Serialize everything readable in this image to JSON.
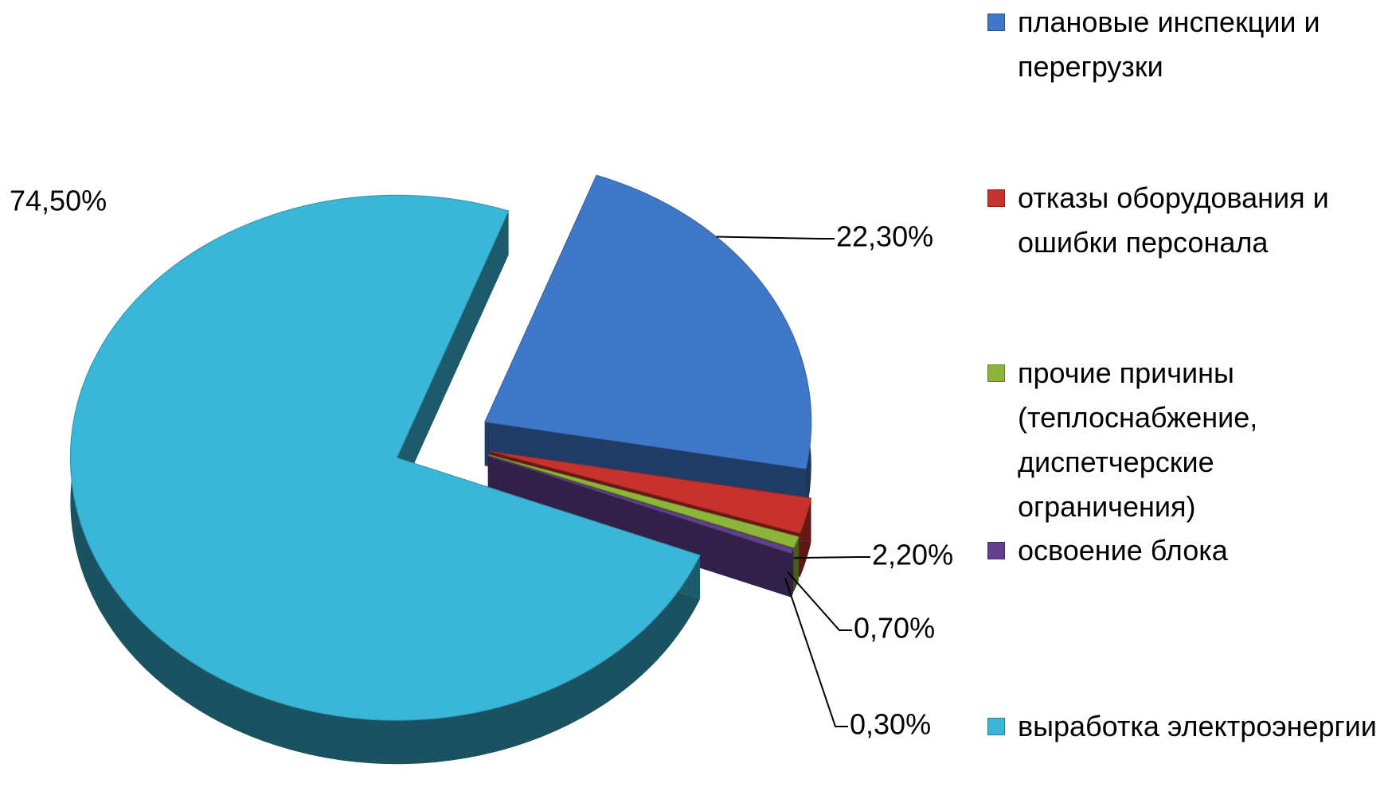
{
  "chart_data": {
    "type": "pie",
    "categories": [
      "плановые инспекции и перегрузки",
      "отказы оборудования и ошибки персонала",
      "прочие причины (теплоснабжение, диспетчерские ограничения)",
      "освоение блока",
      "выработка электроэнергии"
    ],
    "values": [
      22.3,
      2.2,
      0.7,
      0.3,
      74.5
    ],
    "value_labels": [
      "22,30%",
      "2,20%",
      "0,70%",
      "0,30%",
      "74,50%"
    ],
    "colors": [
      "#3f78c8",
      "#c8322c",
      "#8cb53a",
      "#62408f",
      "#3ab6d8"
    ],
    "legend": "right"
  }
}
